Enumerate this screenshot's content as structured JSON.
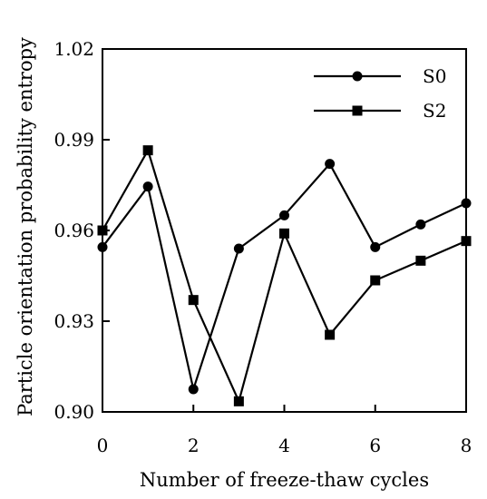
{
  "chart_data": {
    "type": "line",
    "xlabel": "Number of freeze-thaw cycles",
    "ylabel": "Particle orientation probability entropy",
    "xlim": [
      0,
      8
    ],
    "ylim": [
      0.9,
      1.02
    ],
    "x_ticks": [
      0,
      2,
      4,
      6,
      8
    ],
    "x_tick_labels": [
      "0",
      "2",
      "4",
      "6",
      "8"
    ],
    "y_ticks": [
      0.9,
      0.93,
      0.96,
      0.99,
      1.02
    ],
    "y_tick_labels": [
      "0.90",
      "0.93",
      "0.96",
      "0.99",
      "1.02"
    ],
    "grid": false,
    "legend_position": "top-right",
    "x": [
      0,
      1,
      2,
      3,
      4,
      5,
      6,
      7,
      8
    ],
    "series": [
      {
        "name": "S0",
        "marker": "circle",
        "color": "#000000",
        "values": [
          0.9545,
          0.9745,
          0.9075,
          0.954,
          0.965,
          0.982,
          0.9545,
          0.962,
          0.969
        ]
      },
      {
        "name": "S2",
        "marker": "square",
        "color": "#000000",
        "values": [
          0.96,
          0.9865,
          0.937,
          0.9035,
          0.959,
          0.9255,
          0.9435,
          0.95,
          0.9565
        ]
      }
    ]
  }
}
